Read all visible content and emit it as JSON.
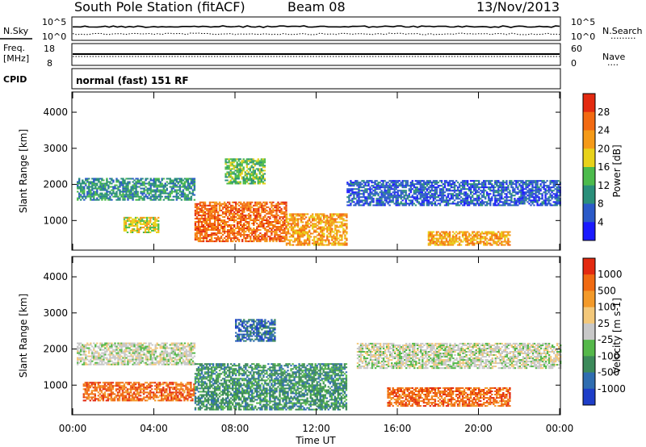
{
  "header": {
    "station": "South Pole Station (fitACF)",
    "beam": "Beam 08",
    "date": "13/Nov/2013"
  },
  "panels": {
    "nsky": {
      "label": "N.Sky",
      "top_tick": "10^5",
      "bottom_tick": "10^0",
      "right_label": "N.Search",
      "right_legend": "·········"
    },
    "freq": {
      "label_line1": "Freq.",
      "label_line2": "[MHz]",
      "ticks": [
        "18",
        "8"
      ],
      "right_ticks": [
        "60",
        "0"
      ],
      "right_label": "Nave",
      "right_legend": "····"
    },
    "cpid": {
      "label": "CPID",
      "text": "normal (fast) 151 RF"
    }
  },
  "chart_data": [
    {
      "type": "heatmap",
      "name": "power",
      "ylabel": "Slant Range [km]",
      "ylim": [
        180,
        4560
      ],
      "yticks": [
        "1000",
        "2000",
        "3000",
        "4000"
      ],
      "colorbar": {
        "label": "Power [dB]",
        "ticks": [
          "4",
          "8",
          "12",
          "16",
          "20",
          "24",
          "28"
        ],
        "colors": [
          "#1a1aff",
          "#2b5ac8",
          "#2a8f7a",
          "#4cbb4c",
          "#e8d21a",
          "#f59a18",
          "#f26a12",
          "#e32a10"
        ]
      },
      "bands": [
        {
          "t0": 0.2,
          "t1": 6.0,
          "r0": 1550,
          "r1": 2150,
          "level": 2
        },
        {
          "t0": 2.5,
          "t1": 4.2,
          "r0": 650,
          "r1": 1100,
          "level": 4
        },
        {
          "t0": 6.0,
          "t1": 10.5,
          "r0": 400,
          "r1": 1500,
          "level": 6
        },
        {
          "t0": 7.5,
          "t1": 9.5,
          "r0": 2000,
          "r1": 2700,
          "level": 3
        },
        {
          "t0": 10.5,
          "t1": 13.5,
          "r0": 300,
          "r1": 1200,
          "level": 5
        },
        {
          "t0": 13.5,
          "t1": 24.0,
          "r0": 1400,
          "r1": 2100,
          "level": 1
        },
        {
          "t0": 17.5,
          "t1": 21.5,
          "r0": 300,
          "r1": 700,
          "level": 5
        }
      ]
    },
    {
      "type": "heatmap",
      "name": "velocity",
      "ylabel": "Slant Range [km]",
      "ylim": [
        180,
        4560
      ],
      "yticks": [
        "1000",
        "2000",
        "3000",
        "4000"
      ],
      "colorbar": {
        "label": "Velocity [m s-1]",
        "ticks": [
          "1000",
          "500",
          "100",
          "25",
          "-25",
          "-100",
          "-500",
          "-1000"
        ],
        "colors": [
          "#1e3ec8",
          "#2f6db0",
          "#3c8a5a",
          "#55b84a",
          "#c8c8c8",
          "#f3c87a",
          "#f39a2a",
          "#f06a12",
          "#e32a10"
        ]
      },
      "bands": [
        {
          "t0": 0.2,
          "t1": 6.0,
          "r0": 1550,
          "r1": 2150,
          "level": 4
        },
        {
          "t0": 0.5,
          "t1": 6.0,
          "r0": 550,
          "r1": 1050,
          "level": 7
        },
        {
          "t0": 6.0,
          "t1": 13.5,
          "r0": 300,
          "r1": 1600,
          "level": 2
        },
        {
          "t0": 8.0,
          "t1": 10.0,
          "r0": 2200,
          "r1": 2800,
          "level": 1
        },
        {
          "t0": 14.0,
          "t1": 24.0,
          "r0": 1450,
          "r1": 2150,
          "level": 4
        },
        {
          "t0": 15.5,
          "t1": 21.5,
          "r0": 400,
          "r1": 900,
          "level": 7
        }
      ]
    }
  ],
  "xaxis": {
    "label": "Time UT",
    "ticks": [
      "00:00",
      "04:00",
      "08:00",
      "12:00",
      "16:00",
      "20:00",
      "00:00"
    ]
  }
}
